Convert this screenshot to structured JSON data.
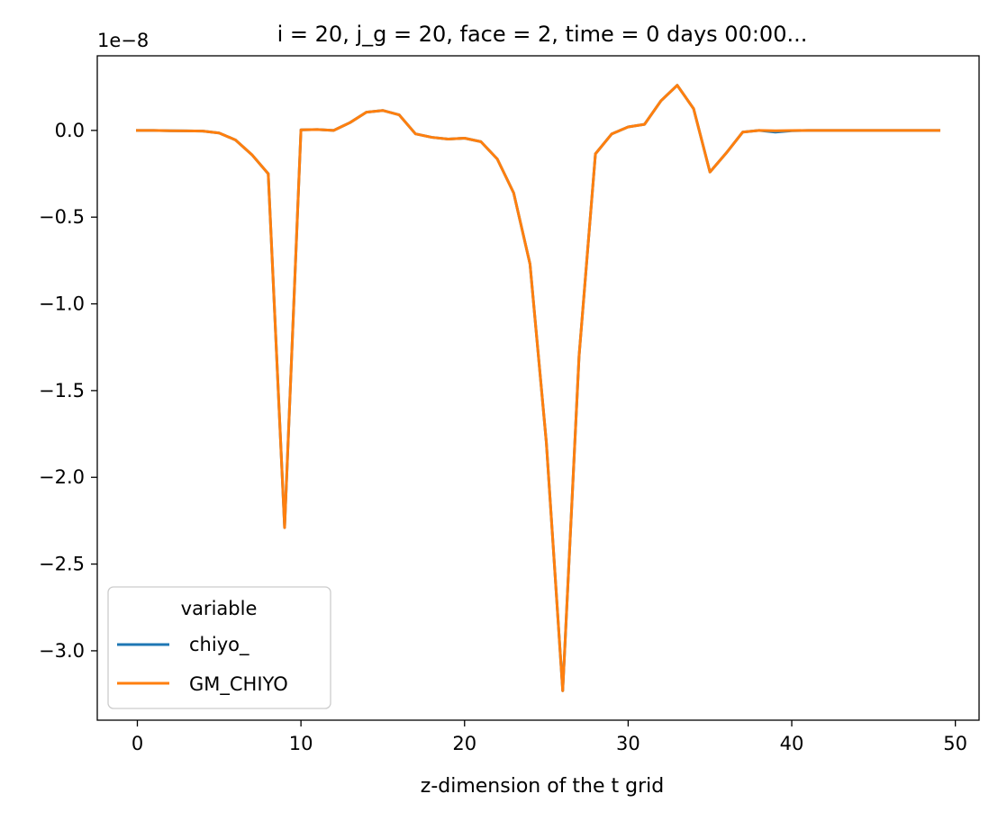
{
  "chart_data": {
    "type": "line",
    "title": "i = 20, j_g = 20, face = 2, time = 0 days 00:00...",
    "xlabel": "z-dimension of the t grid",
    "ylabel": "",
    "y_offset_text": "1e−8",
    "y_scale": 1e-08,
    "xlim": [
      -2.45,
      51.45
    ],
    "ylim": [
      -3.4,
      0.43
    ],
    "x_ticks": [
      0,
      10,
      20,
      30,
      40,
      50
    ],
    "x_tick_labels": [
      "0",
      "10",
      "20",
      "30",
      "40",
      "50"
    ],
    "y_ticks": [
      0.0,
      -0.5,
      -1.0,
      -1.5,
      -2.0,
      -2.5,
      -3.0
    ],
    "y_tick_labels": [
      "0.0",
      "−0.5",
      "−1.0",
      "−1.5",
      "−2.0",
      "−2.5",
      "−3.0"
    ],
    "grid": false,
    "legend": {
      "title": "variable",
      "position": "lower-left"
    },
    "x": [
      0,
      1,
      2,
      3,
      4,
      5,
      6,
      7,
      8,
      9,
      10,
      11,
      12,
      13,
      14,
      15,
      16,
      17,
      18,
      19,
      20,
      21,
      22,
      23,
      24,
      25,
      26,
      27,
      28,
      29,
      30,
      31,
      32,
      33,
      34,
      35,
      36,
      37,
      38,
      39,
      40,
      41,
      42,
      43,
      44,
      45,
      46,
      47,
      48,
      49
    ],
    "series": [
      {
        "name": "chiyo_",
        "color": "#1f77b4",
        "values": [
          0.0,
          0.0,
          -0.002,
          -0.003,
          -0.004,
          -0.015,
          -0.055,
          -0.14,
          -0.25,
          -2.29,
          0.003,
          0.005,
          0.0,
          0.045,
          0.105,
          0.115,
          0.09,
          -0.02,
          -0.04,
          -0.05,
          -0.045,
          -0.065,
          -0.165,
          -0.36,
          -0.77,
          -1.8,
          -3.23,
          -1.3,
          -0.135,
          -0.02,
          0.02,
          0.035,
          0.17,
          0.26,
          0.125,
          -0.24,
          -0.13,
          -0.01,
          0.0,
          -0.01,
          -0.002,
          0.0,
          0.0,
          0.0,
          0.0,
          0.0,
          0.0,
          0.0,
          0.0,
          0.0
        ]
      },
      {
        "name": "GM_CHIYO",
        "color": "#ff7f0e",
        "values": [
          0.0,
          0.0,
          -0.002,
          -0.003,
          -0.004,
          -0.015,
          -0.055,
          -0.14,
          -0.25,
          -2.29,
          0.003,
          0.005,
          0.0,
          0.045,
          0.105,
          0.115,
          0.09,
          -0.02,
          -0.04,
          -0.05,
          -0.045,
          -0.065,
          -0.165,
          -0.36,
          -0.77,
          -1.8,
          -3.23,
          -1.3,
          -0.135,
          -0.02,
          0.02,
          0.035,
          0.17,
          0.26,
          0.125,
          -0.24,
          -0.13,
          -0.01,
          0.0,
          -0.002,
          -0.001,
          0.0,
          0.0,
          0.0,
          0.0,
          0.0,
          0.0,
          0.0,
          0.0,
          0.0
        ]
      }
    ]
  }
}
